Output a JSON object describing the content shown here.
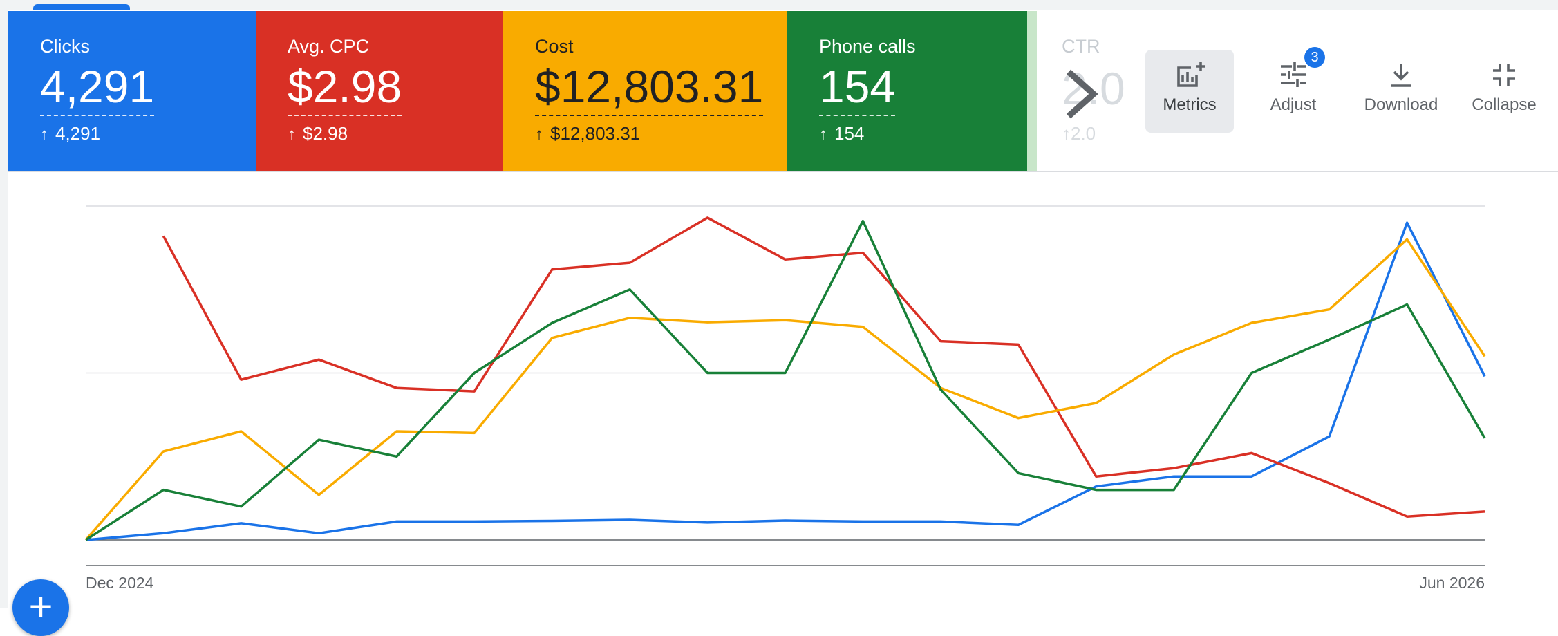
{
  "cards": [
    {
      "label": "Clicks",
      "value": "4,291",
      "compare": "4,291",
      "color": "#1a73e8"
    },
    {
      "label": "Avg. CPC",
      "value": "$2.98",
      "compare": "$2.98",
      "color": "#d93025"
    },
    {
      "label": "Cost",
      "value": "$12,803.31",
      "compare": "$12,803.31",
      "color": "#f9ab00"
    },
    {
      "label": "Phone calls",
      "value": "154",
      "compare": "154",
      "color": "#188038"
    }
  ],
  "ctr_card": {
    "label": "CTR",
    "value": "2.0",
    "compare": "2.0"
  },
  "toolbar": {
    "metrics_label": "Metrics",
    "adjust_label": "Adjust",
    "adjust_badge": "3",
    "download_label": "Download",
    "collapse_label": "Collapse"
  },
  "chart_data": {
    "type": "line",
    "x_start_label": "Dec 2024",
    "x_end_label": "Jun 2026",
    "grid": true,
    "y_normalized": [
      0,
      1
    ],
    "series": [
      {
        "color": "#1a73e8",
        "values": [
          0,
          0.02,
          0.05,
          0.02,
          0.055,
          0.055,
          0.057,
          0.06,
          0.052,
          0.058,
          0.055,
          0.055,
          0.045,
          0.16,
          0.19,
          0.19,
          0.31,
          0.95,
          0.49
        ]
      },
      {
        "color": "#d93025",
        "values": [
          null,
          0.91,
          0.48,
          0.54,
          0.455,
          0.445,
          0.81,
          0.83,
          0.965,
          0.84,
          0.86,
          0.595,
          0.585,
          0.19,
          0.215,
          0.26,
          0.17,
          0.07,
          0.085
        ]
      },
      {
        "color": "#f9ab00",
        "values": [
          0,
          0.265,
          0.325,
          0.135,
          0.325,
          0.32,
          0.605,
          0.665,
          0.652,
          0.658,
          0.638,
          0.455,
          0.365,
          0.41,
          0.555,
          0.65,
          0.69,
          0.9,
          0.55
        ]
      },
      {
        "color": "#188038",
        "values": [
          0,
          0.15,
          0.1,
          0.3,
          0.25,
          0.5,
          0.65,
          0.75,
          0.5,
          0.5,
          0.955,
          0.45,
          0.2,
          0.15,
          0.15,
          0.5,
          0.6,
          0.705,
          0.305
        ]
      }
    ]
  }
}
